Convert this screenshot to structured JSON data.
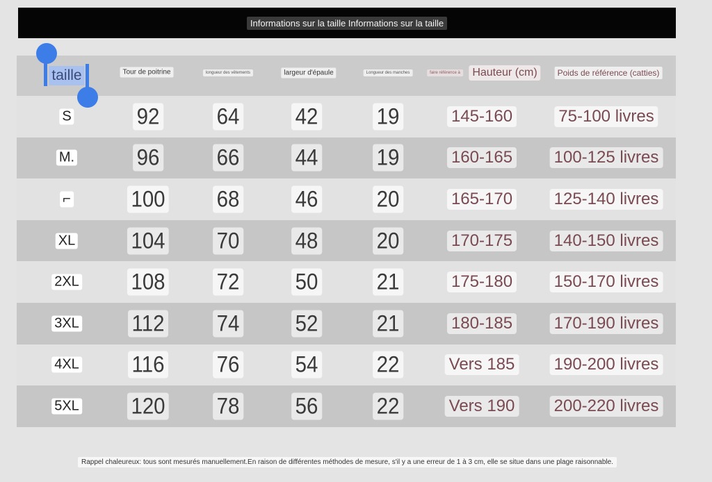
{
  "title": "Informations sur la taille Informations sur la taille",
  "headers": {
    "size": "taille",
    "chest": "Tour de poitrine",
    "length": "longueur des vêtements",
    "shoulder": "largeur d'épaule",
    "sleeve": "Longueur des manches",
    "height_prefix": "faire référence à",
    "height": "Hauteur (cm)",
    "weight": "Poids de référence (catties)"
  },
  "rows": [
    {
      "size": "S",
      "chest": "92",
      "length": "64",
      "shoulder": "42",
      "sleeve": "19",
      "height": "145-160",
      "weight": "75-100 livres"
    },
    {
      "size": "M.",
      "chest": "96",
      "length": "66",
      "shoulder": "44",
      "sleeve": "19",
      "height": "160-165",
      "weight": "100-125 livres"
    },
    {
      "size": "⌐",
      "chest": "100",
      "length": "68",
      "shoulder": "46",
      "sleeve": "20",
      "height": "165-170",
      "weight": "125-140 livres"
    },
    {
      "size": "XL",
      "chest": "104",
      "length": "70",
      "shoulder": "48",
      "sleeve": "20",
      "height": "170-175",
      "weight": "140-150 livres"
    },
    {
      "size": "2XL",
      "chest": "108",
      "length": "72",
      "shoulder": "50",
      "sleeve": "21",
      "height": "175-180",
      "weight": "150-170 livres"
    },
    {
      "size": "3XL",
      "chest": "112",
      "length": "74",
      "shoulder": "52",
      "sleeve": "21",
      "height": "180-185",
      "weight": "170-190 livres"
    },
    {
      "size": "4XL",
      "chest": "116",
      "length": "76",
      "shoulder": "54",
      "sleeve": "22",
      "height": "Vers 185",
      "weight": "190-200 livres"
    },
    {
      "size": "5XL",
      "chest": "120",
      "length": "78",
      "shoulder": "56",
      "sleeve": "22",
      "height": "Vers 190",
      "weight": "200-220 livres"
    }
  ],
  "note": "Rappel chaleureux: tous sont mesurés manuellement.En raison de différentes méthodes de mesure, s'il y a une erreur de 1 à 3 cm, elle se situe dans une plage raisonnable.",
  "colors": {
    "selection": "#3d7de8",
    "accent_text": "#7a4a52"
  }
}
